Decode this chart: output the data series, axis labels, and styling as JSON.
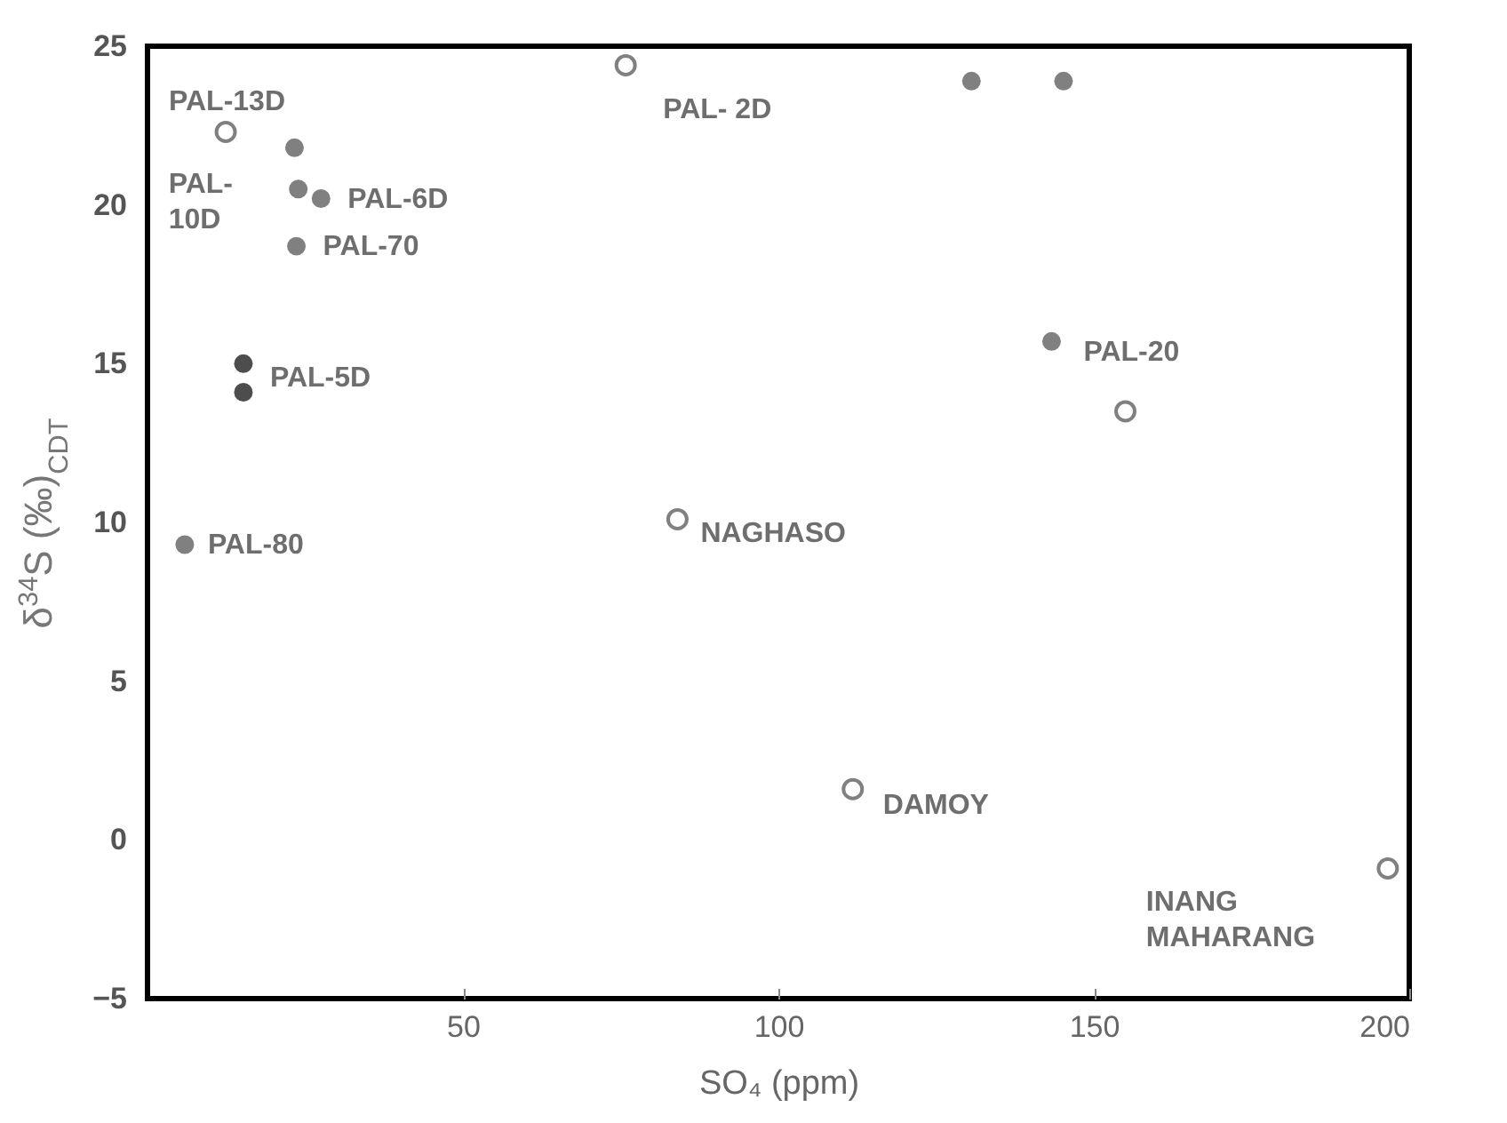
{
  "chart_data": {
    "type": "scatter",
    "xlabel": "SO₄ (ppm)",
    "ylabel": "δ$^{34}$S (‰)$_{CDT}$",
    "xlim": [
      0,
      200
    ],
    "ylim": [
      -5,
      25
    ],
    "xticks": [
      50,
      100,
      150,
      200
    ],
    "yticks": [
      -5,
      0,
      5,
      10,
      15,
      20,
      25
    ],
    "grid": false,
    "marker": "circle",
    "series": [
      {
        "color": "#808080",
        "x": [
          23.3,
          23.9,
          27.5,
          23.6,
          5.9,
          130.6,
          145.2,
          143.3
        ],
        "values": [
          21.8,
          20.5,
          20.2,
          18.7,
          9.3,
          23.9,
          23.9,
          15.7
        ]
      },
      {
        "color": "#4d4d4d",
        "x": [
          15.2,
          15.2
        ],
        "values": [
          15.0,
          14.1
        ]
      },
      {
        "color": "#808080",
        "x": [
          84,
          111.8,
          196.6,
          75.8,
          12.4,
          155
        ],
        "values": [
          10.1,
          1.6,
          -0.9,
          24.4,
          22.3,
          13.5
        ]
      }
    ],
    "annotations": [
      {
        "text": "PAL-13D",
        "x": 12.4,
        "y": 22.3
      },
      {
        "text": "PAL-\n10D",
        "x": 23.9,
        "y": 20.5
      },
      {
        "text": "PAL-6D",
        "x": 27.5,
        "y": 20.2
      },
      {
        "text": "PAL-70",
        "x": 23.6,
        "y": 18.7
      },
      {
        "text": "PAL-5D",
        "x": 15.2,
        "y": 15.0
      },
      {
        "text": "PAL-80",
        "x": 5.9,
        "y": 9.3
      },
      {
        "text": "PAL- 2D",
        "x": 75.8,
        "y": 24.4
      },
      {
        "text": "PAL-20",
        "x": 143.3,
        "y": 15.7
      },
      {
        "text": "NAGHASO",
        "x": 84,
        "y": 10.1
      },
      {
        "text": "DAMOY",
        "x": 111.8,
        "y": 1.6
      },
      {
        "text": "INANG\nMAHARANG",
        "x": 196.6,
        "y": -0.9
      }
    ]
  }
}
